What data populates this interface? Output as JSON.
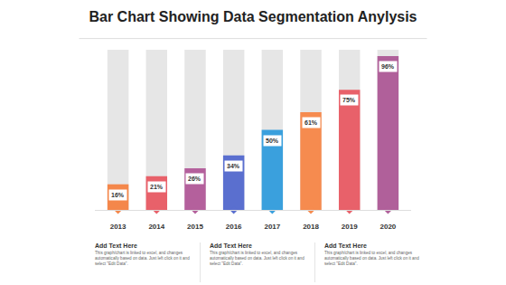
{
  "chart_data": {
    "type": "bar",
    "title": "Bar Chart Showing Data Segmentation Anylysis",
    "categories": [
      "2013",
      "2014",
      "2015",
      "2016",
      "2017",
      "2018",
      "2019",
      "2020"
    ],
    "values": [
      16,
      21,
      26,
      34,
      50,
      61,
      75,
      96
    ],
    "value_labels": [
      "16%",
      "21%",
      "26%",
      "34%",
      "50%",
      "61%",
      "75%",
      "96%"
    ],
    "colors": [
      "#f4874b",
      "#e8616a",
      "#b4609c",
      "#5a6fcf",
      "#3aa0dd",
      "#f68b4f",
      "#e8616a",
      "#b0609a"
    ],
    "ylim": [
      0,
      100
    ],
    "data_labels": true,
    "tick_labels": "x",
    "grid": false
  },
  "text_blocks": [
    {
      "heading": "Add Text Here",
      "body": "This graph/chart is linked to excel, and changes automatically based on data. Just left click on it and select \"Edit Data\"."
    },
    {
      "heading": "Add Text Here",
      "body": "This graph/chart is linked to excel, and changes automatically based on data. Just left click on it and select \"Edit Data\"."
    },
    {
      "heading": "Add Text Here",
      "body": "This graph/chart is linked to excel, and changes automatically based on data. Just left click on it and select \"Edit Data\"."
    }
  ]
}
